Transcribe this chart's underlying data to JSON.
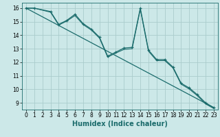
{
  "xlabel": "Humidex (Indice chaleur)",
  "bg_color": "#cce8e8",
  "grid_color": "#aacccc",
  "line_color": "#1a6b6b",
  "xlim": [
    -0.5,
    23.5
  ],
  "ylim": [
    8.5,
    16.4
  ],
  "xticks": [
    0,
    1,
    2,
    3,
    4,
    5,
    6,
    7,
    8,
    9,
    10,
    11,
    12,
    13,
    14,
    15,
    16,
    17,
    18,
    19,
    20,
    21,
    22,
    23
  ],
  "yticks": [
    9,
    10,
    11,
    12,
    13,
    14,
    15,
    16
  ],
  "line1_x": [
    0,
    1,
    3,
    4,
    5,
    6,
    7,
    8,
    9,
    10,
    11,
    12,
    13,
    14,
    15,
    16,
    17,
    18,
    19,
    20,
    21,
    22,
    23
  ],
  "line1_y": [
    16.0,
    16.0,
    15.75,
    14.8,
    15.1,
    15.55,
    14.85,
    14.45,
    13.85,
    12.45,
    12.75,
    13.05,
    13.1,
    16.0,
    12.9,
    12.2,
    12.2,
    11.65,
    10.45,
    10.1,
    9.6,
    9.0,
    8.65
  ],
  "line2_x": [
    0,
    1,
    3,
    4,
    5,
    6,
    7,
    8,
    9,
    10,
    11,
    12,
    13,
    14,
    15,
    16,
    17,
    18,
    19,
    20,
    21,
    22,
    23
  ],
  "line2_y": [
    16.0,
    16.0,
    15.7,
    14.75,
    15.05,
    15.45,
    14.78,
    14.38,
    13.78,
    12.38,
    12.68,
    12.95,
    13.0,
    15.92,
    12.82,
    12.12,
    12.12,
    11.58,
    10.38,
    10.02,
    9.52,
    8.92,
    8.58
  ],
  "trend_x": [
    0,
    23
  ],
  "trend_y": [
    16.0,
    8.65
  ],
  "xlabel_fontsize": 7,
  "tick_fontsize": 5.5
}
